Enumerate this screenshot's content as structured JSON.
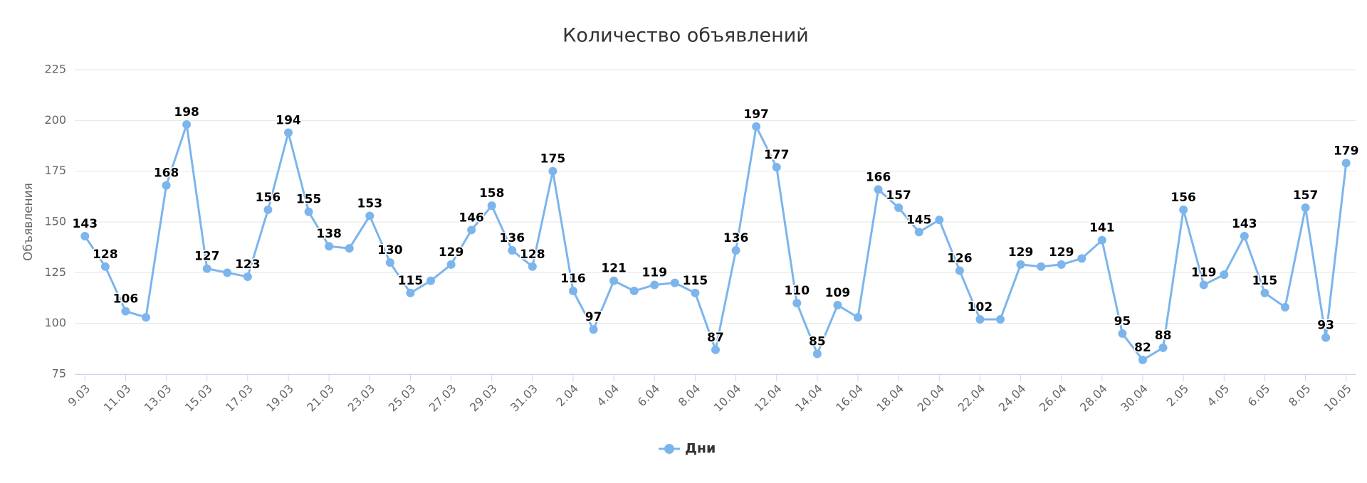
{
  "chart_data": {
    "type": "line",
    "title": "Количество объявлений",
    "y_label": "Объявления",
    "categories": [
      "9.03",
      null,
      "11.03",
      null,
      "13.03",
      null,
      "15.03",
      null,
      "17.03",
      null,
      "19.03",
      null,
      "21.03",
      null,
      "23.03",
      null,
      "25.03",
      null,
      "27.03",
      null,
      "29.03",
      null,
      "31.03",
      null,
      "2.04",
      null,
      "4.04",
      null,
      "6.04",
      null,
      "8.04",
      null,
      "10.04",
      null,
      "12.04",
      null,
      "14.04",
      null,
      "16.04",
      null,
      "18.04",
      null,
      "20.04",
      null,
      "22.04",
      null,
      "24.04",
      null,
      "26.04",
      null,
      "28.04",
      null,
      "30.04",
      null,
      "2.05",
      null,
      "4.05",
      null,
      "6.05",
      null,
      "8.05",
      null,
      "10.05"
    ],
    "series": [
      {
        "name": "Дни",
        "color": "#7cb5ec",
        "values": [
          143,
          128,
          106,
          103,
          168,
          198,
          127,
          125,
          123,
          156,
          194,
          155,
          138,
          137,
          153,
          130,
          115,
          121,
          129,
          146,
          158,
          136,
          128,
          175,
          116,
          97,
          121,
          116,
          119,
          120,
          115,
          87,
          136,
          197,
          177,
          110,
          85,
          109,
          103,
          166,
          157,
          145,
          151,
          126,
          102,
          102,
          129,
          128,
          129,
          132,
          141,
          95,
          82,
          88,
          156,
          119,
          124,
          143,
          115,
          108,
          157,
          93,
          179
        ],
        "value_labels": [
          "143",
          "128",
          "106",
          null,
          "168",
          "198",
          "127",
          null,
          "123",
          "156",
          "194",
          "155",
          "138",
          null,
          "153",
          "130",
          "115",
          null,
          "129",
          "146",
          "158",
          "136",
          "128",
          "175",
          "116",
          "97",
          "121",
          null,
          "119",
          null,
          "115",
          "87",
          "136",
          "197",
          "177",
          "110",
          "85",
          "109",
          null,
          "166",
          "157",
          "145",
          null,
          "126",
          "102",
          null,
          "129",
          null,
          "129",
          null,
          "141",
          "95",
          "82",
          "88",
          "156",
          "119",
          null,
          "143",
          "115",
          null,
          "157",
          "93",
          "179"
        ]
      }
    ],
    "ylim": [
      75,
      225
    ],
    "yticks": [
      75,
      100,
      125,
      150,
      175,
      200,
      225
    ],
    "grid": true,
    "legend": "bottom"
  }
}
